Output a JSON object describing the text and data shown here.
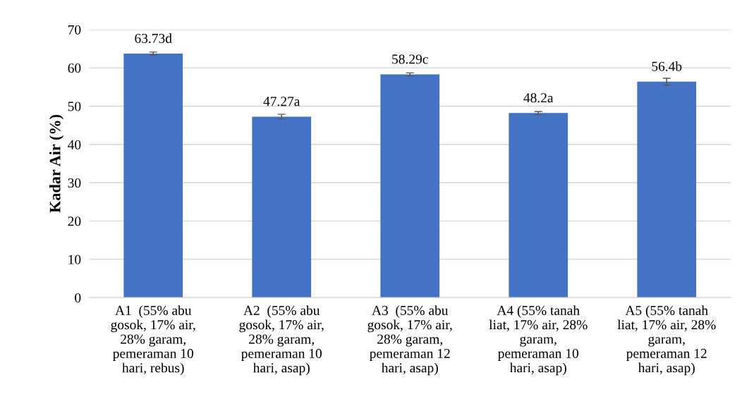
{
  "chart_data": {
    "type": "bar",
    "ylabel": "Kadar Air (%)",
    "categories": [
      "A1  (55% abu\ngosok, 17% air,\n28% garam,\npemeraman 10\nhari, rebus)",
      "A2  (55% abu\ngosok, 17% air,\n28% garam,\npemeraman 10\nhari, asap)",
      "A3  (55% abu\ngosok, 17% air,\n28% garam,\npemeraman 12\nhari, asap)",
      "A4 (55% tanah\nliat, 17% air, 28%\ngaram,\npemeraman 10\nhari, asap)",
      "A5 (55% tanah\nliat, 17% air, 28%\ngaram,\npemeraman 12\nhari, asap)"
    ],
    "values": [
      63.73,
      47.27,
      58.29,
      48.2,
      56.4
    ],
    "errors": [
      0.4,
      0.6,
      0.4,
      0.4,
      0.9
    ],
    "value_labels": [
      "63.73d",
      "47.27a",
      "58.29c",
      "48.2a",
      "56.4b"
    ],
    "color": "#4472c4",
    "ylim": [
      0,
      70
    ],
    "yticks": [
      0,
      10,
      20,
      30,
      40,
      50,
      60,
      70
    ],
    "grid": "y"
  }
}
